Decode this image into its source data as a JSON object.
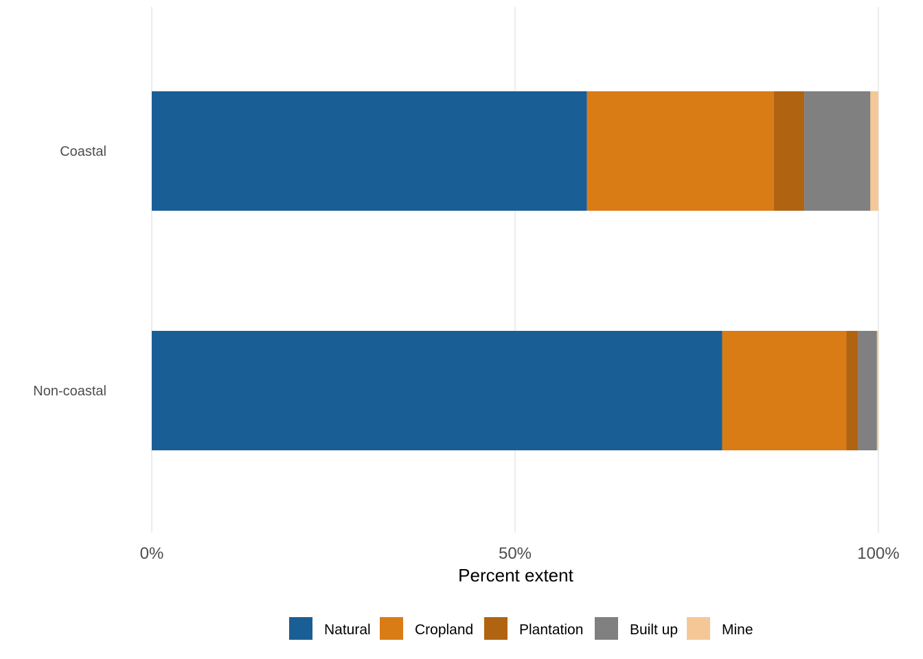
{
  "chart_data": {
    "type": "bar",
    "orientation": "horizontal",
    "stacked": true,
    "categories": [
      "Coastal",
      "Non-coastal"
    ],
    "series": [
      {
        "name": "Natural",
        "color": "#1a5e96",
        "values": [
          59.9,
          78.5
        ]
      },
      {
        "name": "Cropland",
        "color": "#d97c16",
        "values": [
          25.7,
          17.1
        ]
      },
      {
        "name": "Plantation",
        "color": "#b06412",
        "values": [
          4.2,
          1.6
        ]
      },
      {
        "name": "Built up",
        "color": "#808080",
        "values": [
          9.1,
          2.6
        ]
      },
      {
        "name": "Mine",
        "color": "#f5c796",
        "values": [
          1.1,
          0.2
        ]
      }
    ],
    "xlabel": "Percent extent",
    "xticks": [
      "0%",
      "50%",
      "100%"
    ],
    "xtick_values": [
      0,
      50,
      100
    ],
    "xlim": [
      0,
      100
    ],
    "grid": "vertical major",
    "legend_position": "bottom"
  }
}
